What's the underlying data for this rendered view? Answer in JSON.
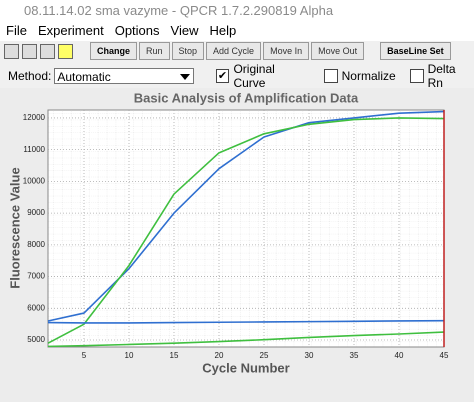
{
  "window": {
    "title": "08.11.14.02 sma vazyme - QPCR 1.7.2.290819 Alpha"
  },
  "menu": [
    "File",
    "Experiment",
    "Options",
    "View",
    "Help"
  ],
  "toolbar": {
    "buttons": [
      {
        "label": "Change",
        "bold": true
      },
      {
        "label": "Run",
        "bold": false
      },
      {
        "label": "Stop",
        "bold": false
      },
      {
        "label": "Add Cycle",
        "bold": false
      },
      {
        "label": "Move In",
        "bold": false
      },
      {
        "label": "Move Out",
        "bold": false
      },
      {
        "label": "BaseLine Set",
        "bold": true
      }
    ]
  },
  "options": {
    "method_label": "Method:",
    "method": "Automatic",
    "checkboxes": [
      {
        "label": "Original Curve",
        "checked": true
      },
      {
        "label": "Normalize",
        "checked": false
      },
      {
        "label": "Delta Rn",
        "checked": false
      }
    ]
  },
  "chart_data": {
    "type": "line",
    "title": "Basic Analysis of Amplification Data",
    "x_label": "Cycle Number",
    "y_label": "Fluorescence Value",
    "x": [
      1,
      5,
      10,
      15,
      20,
      25,
      30,
      35,
      40,
      45
    ],
    "series": [
      {
        "color": "#2f6fd0",
        "values": [
          5600,
          5850,
          7250,
          9000,
          10400,
          11400,
          11850,
          12000,
          12150,
          12200
        ]
      },
      {
        "color": "#3fbf3f",
        "values": [
          4900,
          5500,
          7350,
          9600,
          10900,
          11500,
          11800,
          11950,
          12000,
          11980
        ]
      },
      {
        "color": "#2f6fd0",
        "values": [
          5550,
          5540,
          5540,
          5550,
          5560,
          5570,
          5580,
          5590,
          5600,
          5610
        ]
      },
      {
        "color": "#3fbf3f",
        "values": [
          4800,
          4820,
          4860,
          4900,
          4950,
          5010,
          5080,
          5140,
          5190,
          5250
        ]
      }
    ],
    "xlim": [
      1,
      45
    ],
    "ylim": [
      4780,
      12250
    ],
    "xticks": [
      5,
      10,
      15,
      20,
      25,
      30,
      35,
      40,
      45
    ],
    "yticks": [
      5000,
      6000,
      7000,
      8000,
      9000,
      10000,
      11000,
      12000
    ],
    "grid": true,
    "cursor_color": "#c02020"
  }
}
